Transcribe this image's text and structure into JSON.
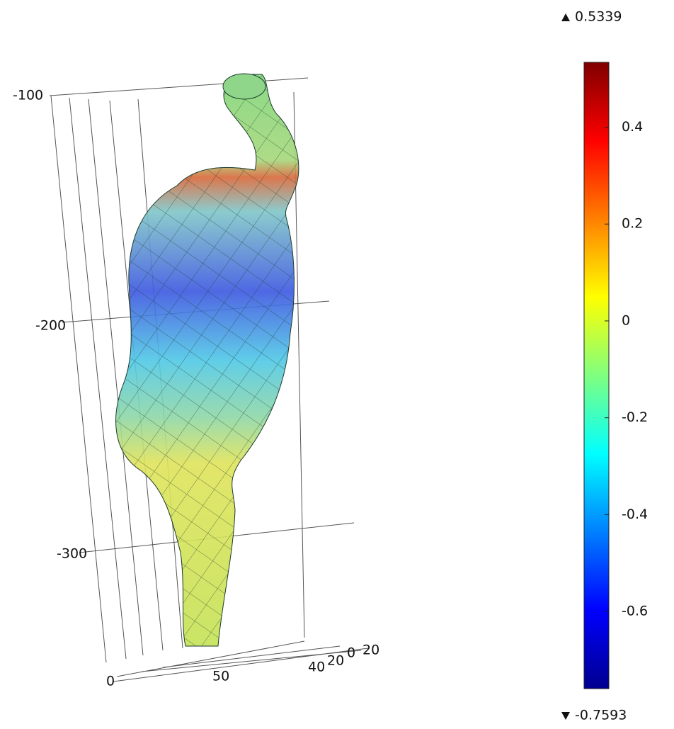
{
  "colorbar": {
    "max": 0.5339,
    "min": -0.7593,
    "ticks": [
      0.4,
      0.2,
      0,
      -0.2,
      -0.4,
      -0.6
    ]
  },
  "axis_labels": [
    "-100",
    "-200",
    "-300",
    "0",
    "50",
    "40",
    "20",
    "0",
    "20"
  ]
}
